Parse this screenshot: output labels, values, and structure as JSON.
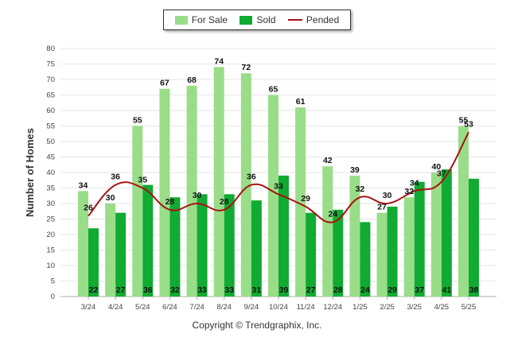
{
  "chart_data": {
    "type": "bar",
    "categories": [
      "3/24",
      "4/24",
      "5/24",
      "6/24",
      "7/24",
      "8/24",
      "9/24",
      "10/24",
      "11/24",
      "12/24",
      "1/25",
      "2/25",
      "3/25",
      "4/25",
      "5/25"
    ],
    "series": [
      {
        "name": "For Sale",
        "kind": "bar",
        "color": "#99dd88",
        "values": [
          34,
          30,
          55,
          67,
          68,
          74,
          72,
          65,
          61,
          42,
          39,
          27,
          32,
          40,
          55
        ]
      },
      {
        "name": "Sold",
        "kind": "bar",
        "color": "#11aa33",
        "values": [
          22,
          27,
          36,
          32,
          33,
          33,
          31,
          39,
          27,
          28,
          24,
          29,
          37,
          41,
          38
        ]
      },
      {
        "name": "Pended",
        "kind": "line",
        "color": "#aa1111",
        "values": [
          26,
          36,
          35,
          28,
          30,
          28,
          36,
          33,
          29,
          24,
          32,
          30,
          34,
          37,
          53
        ]
      }
    ],
    "ylabel": "Number of Homes",
    "xlabel": "",
    "ylim": [
      0,
      80
    ],
    "yticks": [
      0,
      5,
      10,
      15,
      20,
      25,
      30,
      35,
      40,
      45,
      50,
      55,
      60,
      65,
      70,
      75,
      80
    ],
    "grid": true,
    "legend_position": "top-center"
  },
  "legend": {
    "for_sale": "For Sale",
    "sold": "Sold",
    "pended": "Pended"
  },
  "footer": {
    "copyright": "Copyright © Trendgraphix, Inc."
  }
}
